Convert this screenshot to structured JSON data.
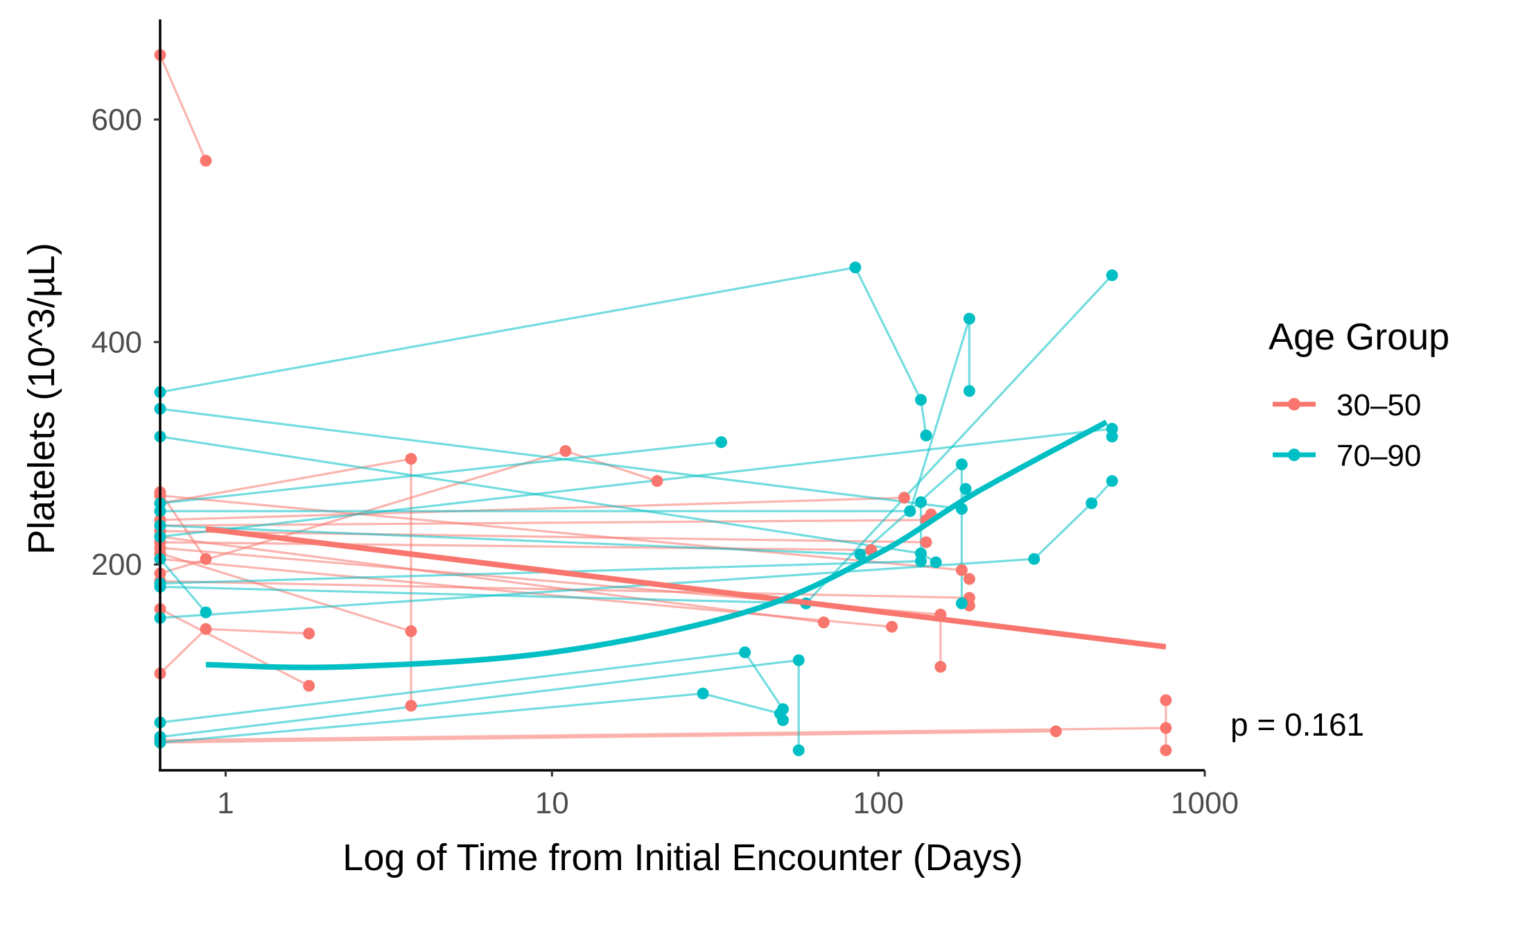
{
  "chart_data": {
    "type": "line",
    "title": "",
    "xlabel": "Log of Time from Initial Encounter (Days)",
    "ylabel": "Platelets (10^3/µL)",
    "x_scale": "log10",
    "xlim": [
      0.63,
      1000
    ],
    "ylim": [
      15,
      690
    ],
    "x_ticks": [
      1,
      10,
      100,
      1000
    ],
    "x_tick_labels": [
      "1",
      "10",
      "100",
      "1000"
    ],
    "y_ticks": [
      200,
      400,
      600
    ],
    "y_tick_labels": [
      "200",
      "400",
      "600"
    ],
    "grid": false,
    "legend": {
      "title": "Age Group",
      "position": "right",
      "entries": [
        {
          "label": "30–50",
          "color": "#F8766D"
        },
        {
          "label": "70–90",
          "color": "#00BFC4"
        }
      ]
    },
    "annotation": "p = 0.161",
    "series": [
      {
        "name": "30–50",
        "color": "#F8766D",
        "trajectories": [
          [
            [
              0.63,
              658
            ],
            [
              0.87,
              563
            ]
          ],
          [
            [
              0.63,
              265
            ],
            [
              0.87,
              205
            ]
          ],
          [
            [
              0.63,
              102
            ],
            [
              0.87,
              142
            ],
            [
              1.8,
              138
            ]
          ],
          [
            [
              0.63,
              192
            ],
            [
              11,
              302
            ],
            [
              21,
              275
            ]
          ],
          [
            [
              0.63,
              160
            ],
            [
              1.8,
              91
            ]
          ],
          [
            [
              0.63,
              255
            ],
            [
              3.7,
              295
            ],
            [
              3.7,
              73
            ]
          ],
          [
            [
              0.63,
              210
            ],
            [
              3.7,
              140
            ]
          ],
          [
            [
              0.63,
              225
            ],
            [
              68,
              148
            ]
          ],
          [
            [
              0.63,
              240
            ],
            [
              120,
              260
            ]
          ],
          [
            [
              0.63,
              230
            ],
            [
              140,
              220
            ]
          ],
          [
            [
              0.63,
              235
            ],
            [
              140,
              240
            ],
            [
              145,
              245
            ]
          ],
          [
            [
              0.63,
              220
            ],
            [
              95,
              213
            ]
          ],
          [
            [
              0.63,
              205
            ],
            [
              110,
              144
            ]
          ],
          [
            [
              0.63,
              215
            ],
            [
              155,
              155
            ],
            [
              155,
              108
            ]
          ],
          [
            [
              0.63,
              262
            ],
            [
              180,
              195
            ],
            [
              190,
              187
            ]
          ],
          [
            [
              0.63,
              185
            ],
            [
              190,
              170
            ],
            [
              190,
              163
            ]
          ],
          [
            [
              0.63,
              40
            ],
            [
              350,
              50
            ]
          ],
          [
            [
              0.63,
              42
            ],
            [
              760,
              53
            ],
            [
              760,
              78
            ],
            [
              760,
              33
            ]
          ]
        ],
        "trend": [
          [
            0.87,
            232
          ],
          [
            760,
            126
          ]
        ]
      },
      {
        "name": "70–90",
        "color": "#00BFC4",
        "trajectories": [
          [
            [
              0.63,
              355
            ],
            [
              85,
              467
            ],
            [
              135,
              348
            ],
            [
              140,
              316
            ]
          ],
          [
            [
              0.63,
              340
            ],
            [
              180,
              250
            ],
            [
              185,
              268
            ]
          ],
          [
            [
              0.63,
              315
            ],
            [
              135,
              210
            ],
            [
              150,
              202
            ]
          ],
          [
            [
              0.63,
              255
            ],
            [
              33,
              310
            ]
          ],
          [
            [
              0.63,
              248
            ],
            [
              125,
              248
            ],
            [
              190,
              421
            ],
            [
              190,
              356
            ]
          ],
          [
            [
              0.63,
              205
            ],
            [
              0.87,
              157
            ]
          ],
          [
            [
              0.63,
              235
            ],
            [
              88,
              209
            ],
            [
              180,
              290
            ],
            [
              180,
              165
            ]
          ],
          [
            [
              0.63,
              183
            ],
            [
              135,
              203
            ],
            [
              135,
              256
            ]
          ],
          [
            [
              0.63,
              180
            ],
            [
              60,
              165
            ],
            [
              520,
              460
            ]
          ],
          [
            [
              0.63,
              152
            ],
            [
              300,
              205
            ],
            [
              450,
              255
            ],
            [
              520,
              275
            ]
          ],
          [
            [
              0.63,
              58
            ],
            [
              39,
              121
            ],
            [
              51,
              70
            ],
            [
              51,
              60
            ]
          ],
          [
            [
              0.63,
              40
            ],
            [
              29,
              84
            ],
            [
              50,
              66
            ]
          ],
          [
            [
              0.63,
              225
            ],
            [
              520,
              322
            ],
            [
              520,
              315
            ]
          ],
          [
            [
              0.63,
              45
            ],
            [
              57,
              114
            ],
            [
              57,
              33
            ]
          ]
        ],
        "trend": [
          [
            0.87,
            110
          ],
          [
            2.3,
            108
          ],
          [
            10,
            121
          ],
          [
            40,
            158
          ],
          [
            100,
            210
          ],
          [
            200,
            265
          ],
          [
            500,
            328
          ]
        ]
      }
    ]
  }
}
